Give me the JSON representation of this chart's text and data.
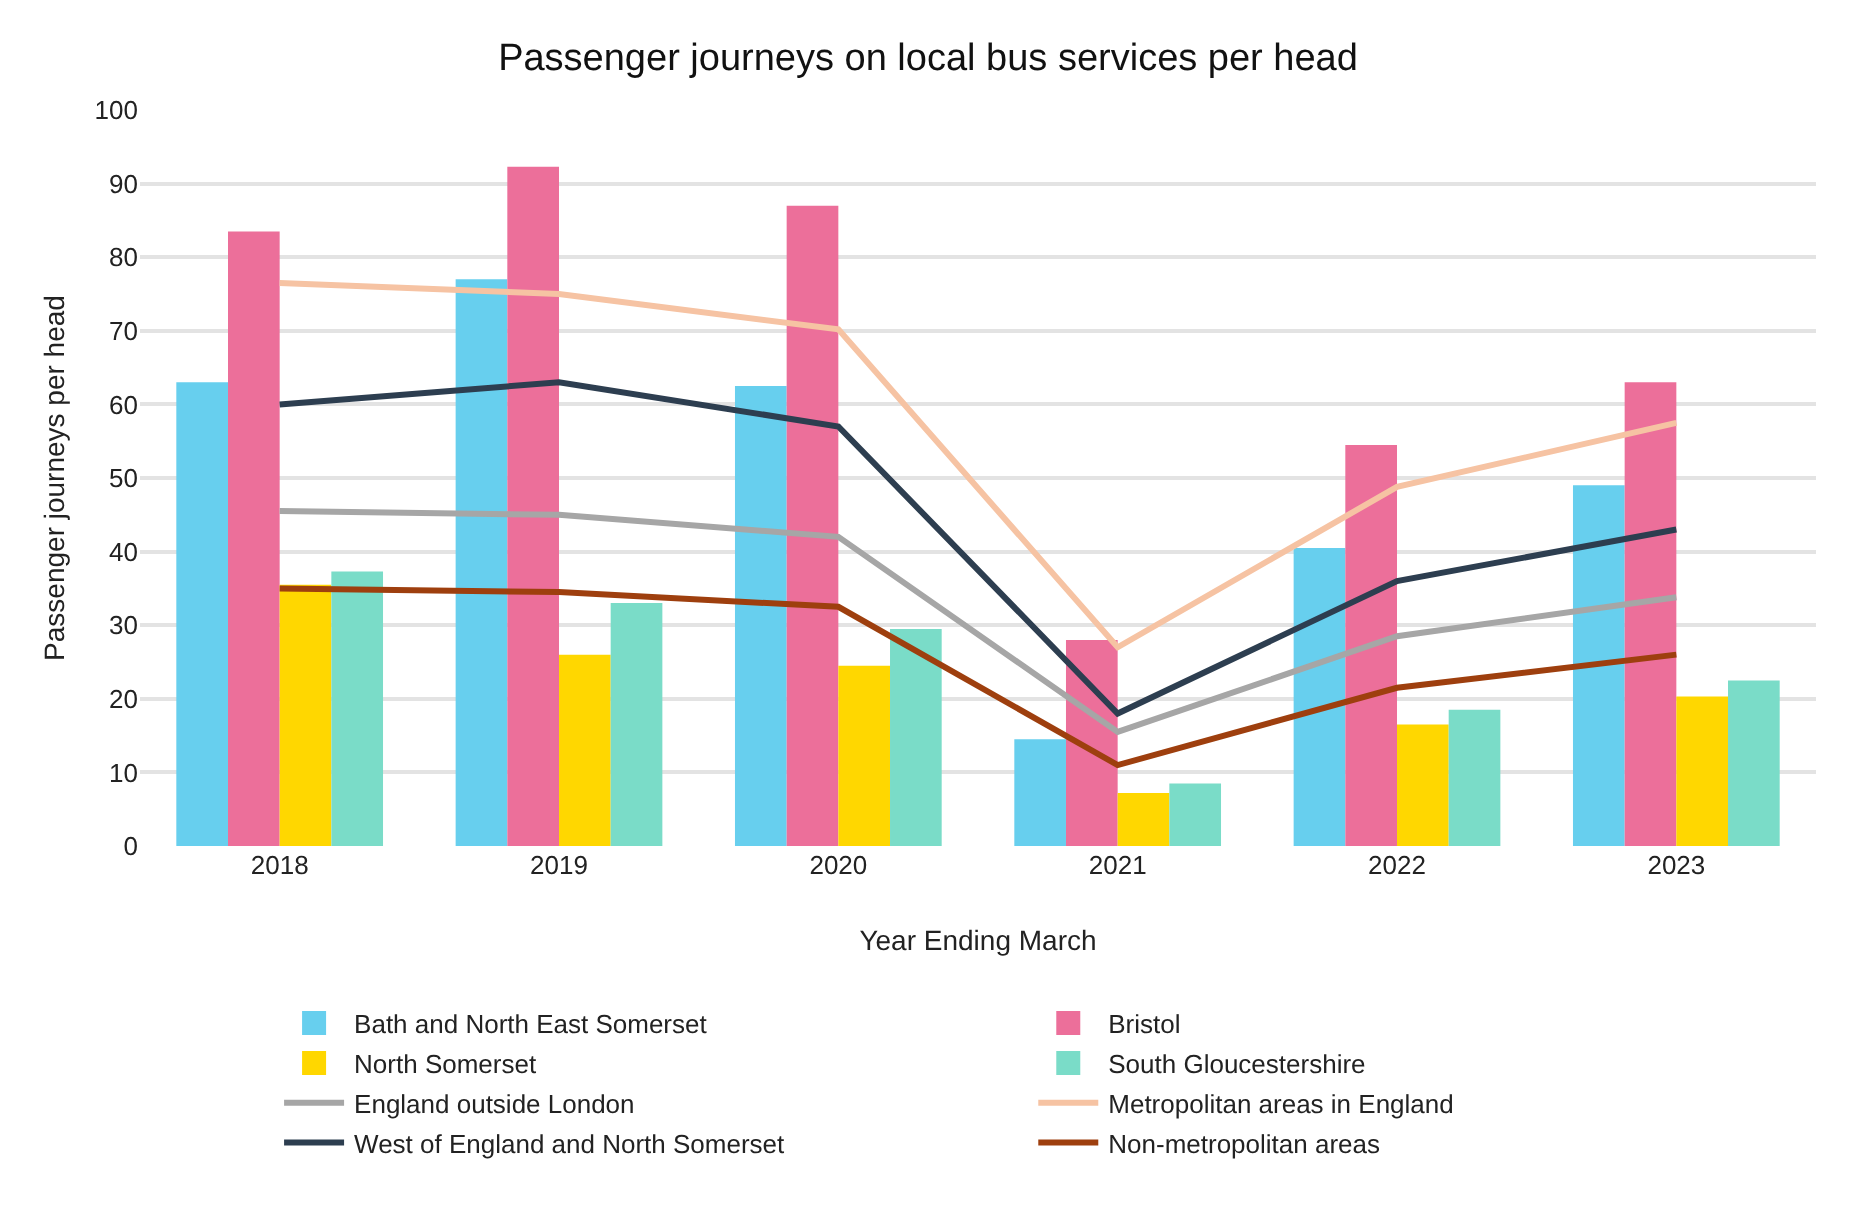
{
  "chart_data": {
    "type": "bar",
    "title": "Passenger journeys on local bus services per head",
    "xlabel": "Year Ending March",
    "ylabel": "Passenger journeys per head",
    "categories": [
      "2018",
      "2019",
      "2020",
      "2021",
      "2022",
      "2023"
    ],
    "series": [
      {
        "name": "Bath and North East Somerset",
        "color": "#67cfee",
        "values": [
          63,
          77,
          62.5,
          14.5,
          40.5,
          49
        ]
      },
      {
        "name": "Bristol",
        "color": "#ec6f9a",
        "values": [
          83.5,
          92.3,
          87,
          28,
          54.5,
          63
        ]
      },
      {
        "name": "North Somerset",
        "color": "#ffd700",
        "values": [
          35.5,
          26,
          24.5,
          7.2,
          16.5,
          20.3
        ]
      },
      {
        "name": "South Gloucestershire",
        "color": "#7adcc8",
        "values": [
          37.3,
          33,
          29.5,
          8.5,
          18.5,
          22.5
        ]
      },
      {
        "name": "England outside London",
        "type": "line",
        "color": "#a6a6a6",
        "values": [
          45.5,
          45,
          42,
          15.5,
          28.5,
          33.8
        ]
      },
      {
        "name": "Metropolitan areas in England",
        "type": "line",
        "color": "#f6c3a3",
        "values": [
          76.5,
          75,
          70.2,
          27,
          48.8,
          57.5
        ]
      },
      {
        "name": "West of England and North Somerset",
        "type": "line",
        "color": "#2d3e50",
        "values": [
          60,
          63,
          57,
          18,
          36,
          43
        ]
      },
      {
        "name": "Non-metropolitan areas",
        "type": "line",
        "color": "#9e3f0e",
        "values": [
          35,
          34.5,
          32.5,
          11,
          21.5,
          26
        ]
      }
    ],
    "ylim": [
      0,
      100
    ],
    "yticks": [
      0,
      10,
      20,
      30,
      40,
      50,
      60,
      70,
      80,
      90,
      100
    ],
    "grid": "y",
    "legend": "bottom",
    "marker": "none",
    "line_style": "solid"
  }
}
